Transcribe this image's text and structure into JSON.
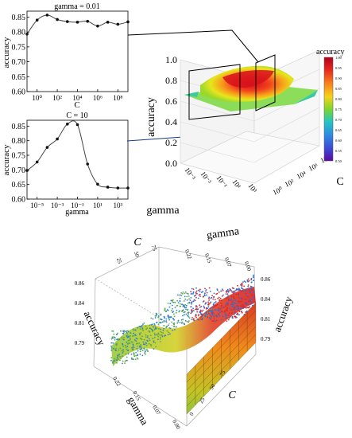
{
  "chart_data": [
    {
      "type": "line",
      "title": "gamma = 0.01",
      "xlabel": "C",
      "ylabel": "accuracy",
      "x_scale": "log10",
      "xlim": [
        0.1,
        1000000000
      ],
      "ylim": [
        0.6,
        0.87
      ],
      "x_ticks": [
        "10⁰",
        "10²",
        "10⁴",
        "10⁶",
        "10⁸"
      ],
      "y_ticks": [
        "0.60",
        "0.65",
        "0.70",
        "0.75",
        "0.80",
        "0.85"
      ],
      "x": [
        0.1,
        1,
        10,
        100,
        1000,
        10000,
        100000,
        1000000,
        10000000,
        100000000,
        1000000000
      ],
      "y": [
        0.793,
        0.84,
        0.857,
        0.842,
        0.835,
        0.833,
        0.836,
        0.82,
        0.833,
        0.826,
        0.834
      ]
    },
    {
      "type": "line",
      "title": "C = 10",
      "xlabel": "gamma",
      "ylabel": "accuracy",
      "x_scale": "log10",
      "xlim": [
        1e-06,
        10000
      ],
      "ylim": [
        0.6,
        0.87
      ],
      "x_ticks": [
        "10⁻⁵",
        "10⁻³",
        "10⁻¹",
        "10¹",
        "10³"
      ],
      "y_ticks": [
        "0.60",
        "0.65",
        "0.70",
        "0.75",
        "0.80",
        "0.85"
      ],
      "x": [
        1e-06,
        1e-05,
        0.0001,
        0.001,
        0.01,
        0.1,
        1,
        10,
        100,
        1000,
        10000
      ],
      "y": [
        0.698,
        0.727,
        0.777,
        0.806,
        0.857,
        0.855,
        0.72,
        0.651,
        0.641,
        0.638,
        0.638
      ]
    },
    {
      "type": "surface",
      "title": "",
      "xlabel": "gamma",
      "ylabel": "C",
      "zlabel": "accuracy",
      "zlim": [
        0.0,
        1.0
      ],
      "z_ticks": [
        "0.0",
        "0.2",
        "0.4",
        "0.6",
        "0.8",
        "1.0"
      ],
      "gamma_ticks": [
        "10⁻⁵",
        "10⁻³",
        "10⁻¹",
        "10¹",
        "10³"
      ],
      "C_ticks": [
        "10⁰",
        "10²",
        "10⁴",
        "10⁶",
        "10⁸"
      ],
      "colorbar_title": "accuracy",
      "colorbar_range": [
        0.5,
        1.0
      ],
      "colorbar_ticks": [
        "1.00",
        "0.95",
        "0.90",
        "0.85",
        "0.80",
        "0.75",
        "0.70",
        "0.65",
        "0.60",
        "0.55",
        "0.50"
      ],
      "colorbar_colors": [
        "#b2001f",
        "#e8271e",
        "#f7811c",
        "#f7d11c",
        "#9ad92c",
        "#3ad65e",
        "#23c6c2",
        "#2f8be0",
        "#3b49d8",
        "#5a1fb3",
        "#5c0aa0"
      ],
      "z_peak": 0.86,
      "z_floor": 0.64
    },
    {
      "type": "surface",
      "title": "",
      "xlabel": "gamma",
      "ylabel": "C",
      "zlabel": "accuracy",
      "zlim": [
        0.79,
        0.86
      ],
      "z_ticks": [
        "0.86",
        "0.84",
        "0.81",
        "0.79"
      ],
      "C_ticks": [
        "25",
        "50",
        "75"
      ],
      "gamma_ticks": [
        "0.22",
        "0.15",
        "0.07",
        "0.00"
      ],
      "front_gamma_ticks": [
        "0.22",
        "0.15",
        "0.07",
        "0.00"
      ],
      "front_C_ticks": [
        "75",
        "50",
        "25",
        "0"
      ]
    }
  ]
}
